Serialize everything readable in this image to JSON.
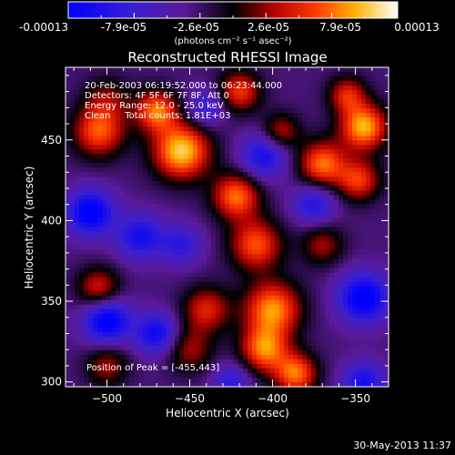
{
  "colorbar": {
    "tick_labels": [
      "-0.00013",
      "-7.9e-05",
      "-2.6e-05",
      "2.6e-05",
      "7.9e-05",
      "0.00013"
    ],
    "unit_label": "(photons cm⁻² s⁻¹ asec⁻²)"
  },
  "plot": {
    "title": "Reconstructed RHESSI Image",
    "info_lines": [
      "20-Feb-2003 06:19:52.000 to 06:23:44.000",
      "Detectors: 4F 5F 6F 7F 8F, Att 0",
      "Energy Range: 12.0 - 25.0 keV",
      "Clean     Total counts: 1.81E+03"
    ],
    "peak_label": "Position of Peak = [-455,443]",
    "footer_date": "30-May-2013 11:37"
  },
  "chart_data": {
    "type": "heatmap",
    "title": "Reconstructed RHESSI Image",
    "xlabel": "Heliocentric X (arcsec)",
    "ylabel": "Heliocentric Y (arcsec)",
    "xlim": [
      -525,
      -330
    ],
    "ylim": [
      297,
      495
    ],
    "x_ticks": [
      -500,
      -450,
      -400,
      -350
    ],
    "y_ticks": [
      300,
      350,
      400,
      450
    ],
    "x_tick_labels": [
      "−500",
      "−450",
      "−400",
      "−350"
    ],
    "y_tick_labels": [
      "300",
      "350",
      "400",
      "450"
    ],
    "colormap": "blue-purple-red-yellow-white",
    "vmin": -0.00013,
    "vmax": 0.00013,
    "peak": {
      "x": -455,
      "y": 443
    },
    "features": [
      {
        "x": -455,
        "y": 443,
        "value": 0.00013,
        "spread": 12
      },
      {
        "x": -470,
        "y": 468,
        "value": 0.0001,
        "spread": 9
      },
      {
        "x": -500,
        "y": 475,
        "value": 4e-05,
        "spread": 10
      },
      {
        "x": -505,
        "y": 455,
        "value": 9e-05,
        "spread": 11
      },
      {
        "x": -420,
        "y": 480,
        "value": 8e-05,
        "spread": 9
      },
      {
        "x": -422,
        "y": 415,
        "value": 0.0001,
        "spread": 10
      },
      {
        "x": -410,
        "y": 385,
        "value": 9e-05,
        "spread": 11
      },
      {
        "x": -400,
        "y": 345,
        "value": 0.00011,
        "spread": 12
      },
      {
        "x": -405,
        "y": 320,
        "value": 0.0001,
        "spread": 10
      },
      {
        "x": -386,
        "y": 305,
        "value": 0.0001,
        "spread": 9
      },
      {
        "x": -370,
        "y": 435,
        "value": 0.0001,
        "spread": 10
      },
      {
        "x": -345,
        "y": 458,
        "value": 0.00012,
        "spread": 10
      },
      {
        "x": -348,
        "y": 425,
        "value": 8e-05,
        "spread": 9
      },
      {
        "x": -355,
        "y": 478,
        "value": 7e-05,
        "spread": 8
      },
      {
        "x": -505,
        "y": 358,
        "value": 7e-05,
        "spread": 9
      },
      {
        "x": -440,
        "y": 345,
        "value": 7e-05,
        "spread": 10
      },
      {
        "x": -500,
        "y": 310,
        "value": 5e-05,
        "spread": 9
      },
      {
        "x": -450,
        "y": 320,
        "value": 5e-05,
        "spread": 10
      },
      {
        "x": -395,
        "y": 455,
        "value": 6e-05,
        "spread": 8
      },
      {
        "x": -370,
        "y": 385,
        "value": 5e-05,
        "spread": 9
      },
      {
        "x": -510,
        "y": 405,
        "value": -0.00012,
        "spread": 10
      },
      {
        "x": -480,
        "y": 390,
        "value": -9e-05,
        "spread": 10
      },
      {
        "x": -500,
        "y": 338,
        "value": -0.00012,
        "spread": 10
      },
      {
        "x": -470,
        "y": 330,
        "value": -0.0001,
        "spread": 9
      },
      {
        "x": -405,
        "y": 440,
        "value": -9e-05,
        "spread": 10
      },
      {
        "x": -375,
        "y": 410,
        "value": -8e-05,
        "spread": 9
      },
      {
        "x": -345,
        "y": 352,
        "value": -0.00012,
        "spread": 11
      },
      {
        "x": -345,
        "y": 300,
        "value": -9e-05,
        "spread": 9
      },
      {
        "x": -440,
        "y": 470,
        "value": -7e-05,
        "spread": 8
      },
      {
        "x": -455,
        "y": 385,
        "value": -7e-05,
        "spread": 9
      },
      {
        "x": -425,
        "y": 300,
        "value": -7e-05,
        "spread": 8
      }
    ]
  }
}
